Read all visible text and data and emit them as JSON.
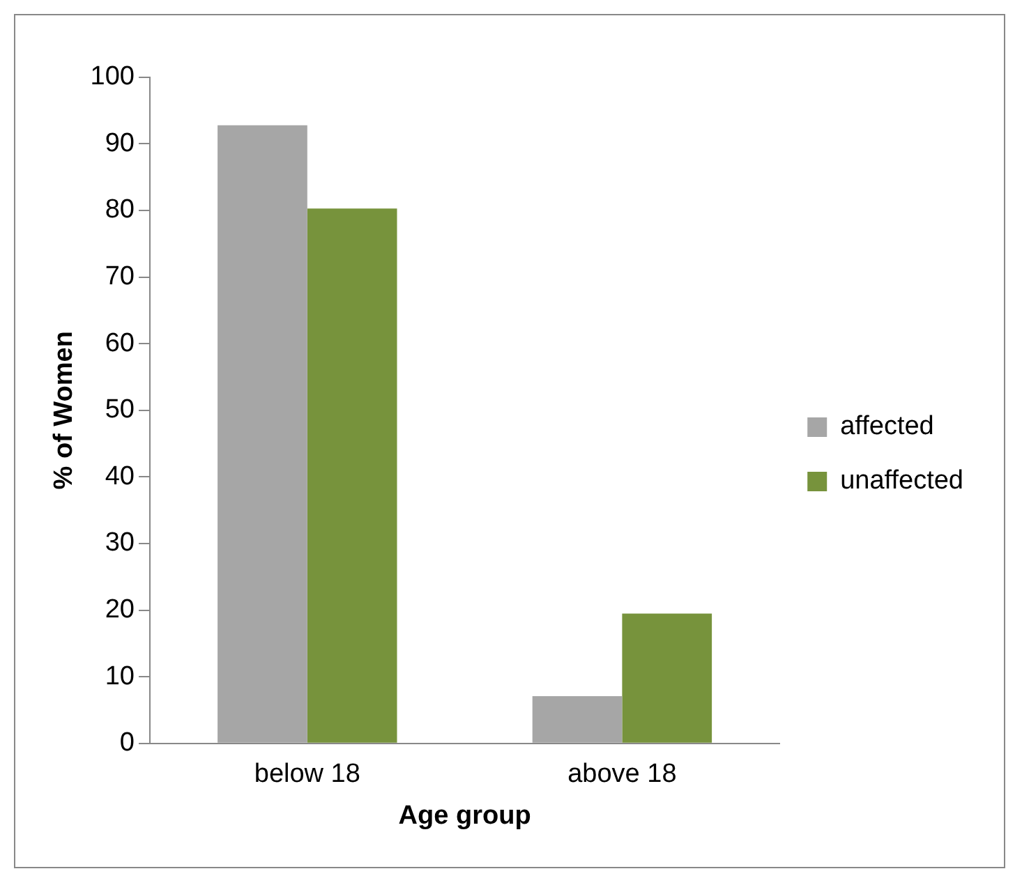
{
  "chart_data": {
    "type": "bar",
    "xlabel": "Age group",
    "ylabel": "% of Women",
    "categories": [
      "below 18",
      "above 18"
    ],
    "series": [
      {
        "name": "affected",
        "color": "#a6a6a6",
        "values": [
          92.8,
          7.1
        ]
      },
      {
        "name": "unaffected",
        "color": "#77933c",
        "values": [
          80.3,
          19.5
        ]
      }
    ],
    "ylim": [
      0,
      100
    ],
    "yticks": [
      0,
      10,
      20,
      30,
      40,
      50,
      60,
      70,
      80,
      90,
      100
    ],
    "grid": false,
    "legend": "right"
  }
}
